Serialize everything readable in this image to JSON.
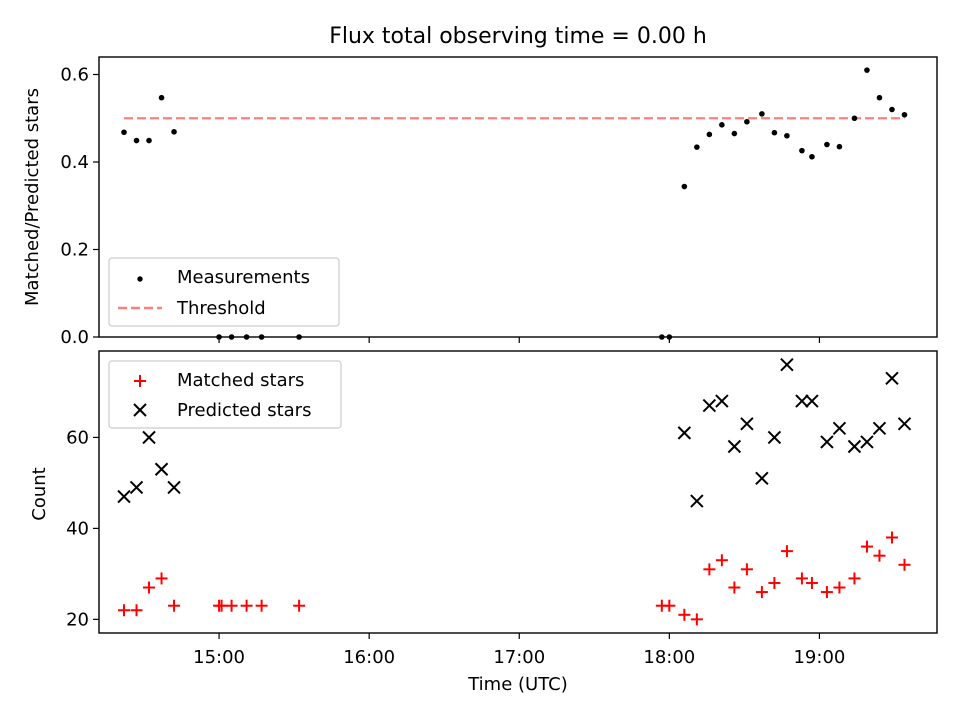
{
  "title": "Flux total observing time = 0.00 h",
  "chart_data": [
    {
      "type": "scatter",
      "ylabel": "Matched/Predicted stars",
      "xlabel": "",
      "xlim": [
        "14:12",
        "19:47"
      ],
      "ylim": [
        0,
        0.64
      ],
      "yticks": [
        0.0,
        0.2,
        0.4,
        0.6
      ],
      "yticklabels": [
        "0.0",
        "0.2",
        "0.4",
        "0.6"
      ],
      "legend_position": "lower-left",
      "grid": false,
      "colors": {
        "measurements": "#000000",
        "threshold": "#ff7f7f"
      },
      "series": [
        {
          "name": "Measurements",
          "x": [
            "14:22",
            "14:27",
            "14:32",
            "14:37",
            "14:42",
            "15:00",
            "15:05",
            "15:11",
            "15:17",
            "15:32",
            "17:57",
            "18:00",
            "18:06",
            "18:11",
            "18:16",
            "18:21",
            "18:26",
            "18:31",
            "18:37",
            "18:42",
            "18:47",
            "18:53",
            "18:57",
            "19:03",
            "19:08",
            "19:14",
            "19:19",
            "19:24",
            "19:29",
            "19:34"
          ],
          "y": [
            0.468,
            0.449,
            0.449,
            0.547,
            0.469,
            0.0,
            0.0,
            0.0,
            0.0,
            0.0,
            0.0,
            0.0,
            0.344,
            0.434,
            0.463,
            0.485,
            0.465,
            0.492,
            0.51,
            0.467,
            0.46,
            0.426,
            0.412,
            0.44,
            0.435,
            0.5,
            0.61,
            0.547,
            0.52,
            0.508
          ]
        },
        {
          "name": "Threshold",
          "style": "dashed",
          "x": [
            "14:22",
            "19:34"
          ],
          "y": [
            0.5,
            0.5
          ]
        }
      ]
    },
    {
      "type": "scatter",
      "ylabel": "Count",
      "xlabel": "Time (UTC)",
      "xlim": [
        "14:12",
        "19:47"
      ],
      "ylim": [
        17,
        79
      ],
      "yticks": [
        20,
        40,
        60
      ],
      "yticklabels": [
        "20",
        "40",
        "60"
      ],
      "xticks": [
        "15:00",
        "16:00",
        "17:00",
        "18:00",
        "19:00"
      ],
      "xticklabels": [
        "15:00",
        "16:00",
        "17:00",
        "18:00",
        "19:00"
      ],
      "legend_position": "upper-left",
      "grid": false,
      "colors": {
        "matched": "#ff0000",
        "predicted": "#000000"
      },
      "series": [
        {
          "name": "Matched stars",
          "marker": "+",
          "x": [
            "14:22",
            "14:27",
            "14:32",
            "14:37",
            "14:42",
            "15:00",
            "15:01",
            "15:05",
            "15:11",
            "15:17",
            "15:32",
            "17:57",
            "18:00",
            "18:06",
            "18:11",
            "18:16",
            "18:21",
            "18:26",
            "18:31",
            "18:37",
            "18:42",
            "18:47",
            "18:53",
            "18:57",
            "19:03",
            "19:08",
            "19:14",
            "19:19",
            "19:24",
            "19:29",
            "19:34"
          ],
          "y": [
            22,
            22,
            27,
            29,
            23,
            23,
            23,
            23,
            23,
            23,
            23,
            23,
            23,
            21,
            20,
            31,
            33,
            27,
            31,
            26,
            28,
            35,
            29,
            28,
            26,
            27,
            29,
            36,
            34,
            38,
            32
          ]
        },
        {
          "name": "Predicted stars",
          "marker": "x",
          "x": [
            "14:22",
            "14:27",
            "14:32",
            "14:37",
            "14:42",
            "18:06",
            "18:11",
            "18:16",
            "18:21",
            "18:26",
            "18:31",
            "18:37",
            "18:42",
            "18:47",
            "18:53",
            "18:57",
            "19:03",
            "19:08",
            "19:14",
            "19:19",
            "19:24",
            "19:29",
            "19:34"
          ],
          "y": [
            47,
            49,
            60,
            53,
            49,
            61,
            46,
            67,
            68,
            58,
            63,
            51,
            60,
            76,
            68,
            68,
            59,
            62,
            58,
            59,
            62,
            73,
            63
          ]
        }
      ]
    }
  ]
}
